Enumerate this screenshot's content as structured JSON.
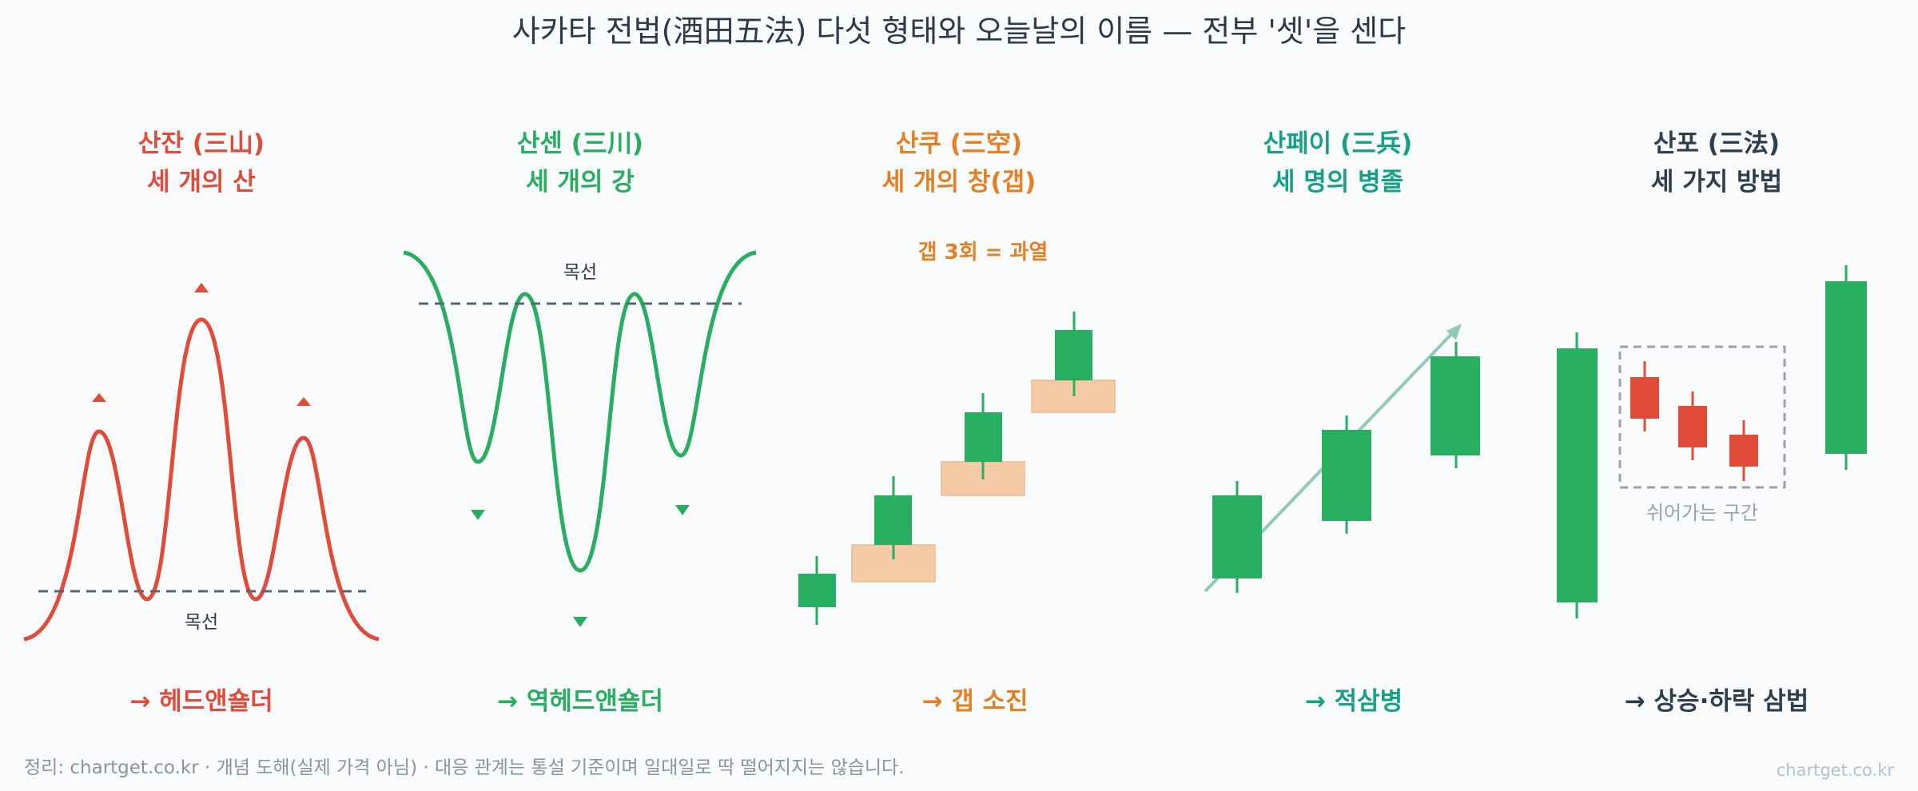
{
  "title": "사카타 전법(酒田五法) 다섯 형태와 오늘날의 이름 — 전부 '셋'을 센다",
  "colors": {
    "red": "#e04b3a",
    "green": "#27ae60",
    "orange": "#e67e22",
    "teal": "#16a085",
    "navy": "#2c3e50",
    "gap": "#f5cba7",
    "grey_line": "#5a6472",
    "arrow": "#8fcbb5"
  },
  "panels": [
    {
      "title_line1": "산잔 (三山)",
      "title_line2": "세 개의 산",
      "modern_name": "→ 헤드앤숄더",
      "neckline_label": "목선"
    },
    {
      "title_line1": "산센 (三川)",
      "title_line2": "세 개의 강",
      "modern_name": "→ 역헤드앤숄더",
      "neckline_label": "목선"
    },
    {
      "title_line1": "산쿠 (三空)",
      "title_line2": "세 개의 창(갭)",
      "modern_name": "→ 갭 소진",
      "note": "갭 3회 = 과열"
    },
    {
      "title_line1": "산페이 (三兵)",
      "title_line2": "세 명의 병졸",
      "modern_name": "→ 적삼병"
    },
    {
      "title_line1": "산포 (三法)",
      "title_line2": "세 가지 방법",
      "modern_name": "→ 상승·하락 삼법",
      "zone_label": "쉬어가는 구간"
    }
  ],
  "footer": "정리: chartget.co.kr · 개념 도해(실제 가격 아님) · 대응 관계는 통설 기준이며 일대일로 딱 떨어지지는 않습니다.",
  "watermark": "chartget.co.kr"
}
